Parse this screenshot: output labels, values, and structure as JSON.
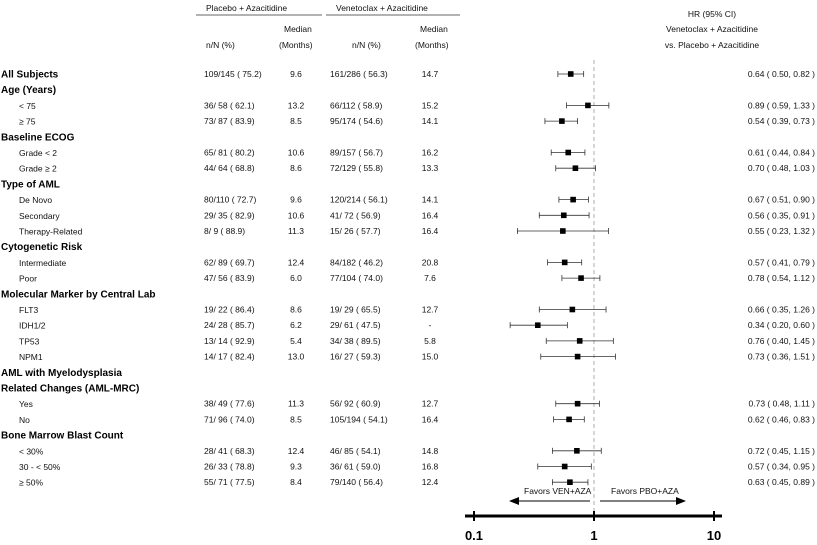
{
  "headers": {
    "placebo_group": "Placebo + Azacitidine",
    "ven_group": "Venetoclax + Azacitidine",
    "nN": "n/N (%)",
    "median1": "Median",
    "median2": "(Months)",
    "hr_line1": "HR (95% CI)",
    "hr_line2": "Venetoclax + Azacitidine",
    "hr_line3": "vs. Placebo + Azacitidine"
  },
  "chart_data": {
    "type": "forest",
    "x_scale": "log",
    "xlim": [
      0.1,
      10
    ],
    "ticks": [
      "0.1",
      "1",
      "10"
    ],
    "tick_values": [
      0.1,
      1,
      10
    ],
    "reference_line": 1,
    "arrow_left_label": "Favors VEN+AZA",
    "arrow_right_label": "Favors PBO+AZA",
    "rows": [
      {
        "label": "All Subjects",
        "kind": "category",
        "pbo_nN": "109/145 ( 75.2)",
        "pbo_median": "9.6",
        "ven_nN": "161/286 ( 56.3)",
        "ven_median": "14.7",
        "hr": 0.64,
        "lo": 0.5,
        "hi": 0.82,
        "hr_text": "0.64 ( 0.50,  0.82 )"
      },
      {
        "label": "Age (Years)",
        "kind": "category"
      },
      {
        "label": "< 75",
        "kind": "sub",
        "pbo_nN": "36/ 58 ( 62.1)",
        "pbo_median": "13.2",
        "ven_nN": "66/112 ( 58.9)",
        "ven_median": "15.2",
        "hr": 0.89,
        "lo": 0.59,
        "hi": 1.33,
        "hr_text": "0.89 ( 0.59,  1.33 )"
      },
      {
        "label": "≥ 75",
        "kind": "sub",
        "pbo_nN": "73/ 87 ( 83.9)",
        "pbo_median": "8.5",
        "ven_nN": "95/174 ( 54.6)",
        "ven_median": "14.1",
        "hr": 0.54,
        "lo": 0.39,
        "hi": 0.73,
        "hr_text": "0.54 ( 0.39,  0.73 )"
      },
      {
        "label": "Baseline ECOG",
        "kind": "category"
      },
      {
        "label": "Grade < 2",
        "kind": "sub",
        "pbo_nN": "65/ 81 ( 80.2)",
        "pbo_median": "10.6",
        "ven_nN": "89/157 ( 56.7)",
        "ven_median": "16.2",
        "hr": 0.61,
        "lo": 0.44,
        "hi": 0.84,
        "hr_text": "0.61 ( 0.44,  0.84 )"
      },
      {
        "label": "Grade ≥ 2",
        "kind": "sub",
        "pbo_nN": "44/ 64 ( 68.8)",
        "pbo_median": "8.6",
        "ven_nN": "72/129 ( 55.8)",
        "ven_median": "13.3",
        "hr": 0.7,
        "lo": 0.48,
        "hi": 1.03,
        "hr_text": "0.70 ( 0.48,  1.03 )"
      },
      {
        "label": "Type of AML",
        "kind": "category"
      },
      {
        "label": "De Novo",
        "kind": "sub",
        "pbo_nN": "80/110 ( 72.7)",
        "pbo_median": "9.6",
        "ven_nN": "120/214 ( 56.1)",
        "ven_median": "14.1",
        "hr": 0.67,
        "lo": 0.51,
        "hi": 0.9,
        "hr_text": "0.67 ( 0.51,  0.90 )"
      },
      {
        "label": "Secondary",
        "kind": "sub",
        "pbo_nN": "29/ 35 ( 82.9)",
        "pbo_median": "10.6",
        "ven_nN": "41/ 72 ( 56.9)",
        "ven_median": "16.4",
        "hr": 0.56,
        "lo": 0.35,
        "hi": 0.91,
        "hr_text": "0.56 ( 0.35,  0.91 )"
      },
      {
        "label": "Therapy-Related",
        "kind": "sub",
        "pbo_nN": "8/  9 ( 88.9)",
        "pbo_median": "11.3",
        "ven_nN": "15/ 26 ( 57.7)",
        "ven_median": "16.4",
        "hr": 0.55,
        "lo": 0.23,
        "hi": 1.32,
        "hr_text": "0.55 ( 0.23,  1.32 )"
      },
      {
        "label": "Cytogenetic Risk",
        "kind": "category"
      },
      {
        "label": "Intermediate",
        "kind": "sub",
        "pbo_nN": "62/ 89 ( 69.7)",
        "pbo_median": "12.4",
        "ven_nN": "84/182 ( 46.2)",
        "ven_median": "20.8",
        "hr": 0.57,
        "lo": 0.41,
        "hi": 0.79,
        "hr_text": "0.57 ( 0.41,  0.79 )"
      },
      {
        "label": "Poor",
        "kind": "sub",
        "pbo_nN": "47/ 56 ( 83.9)",
        "pbo_median": "6.0",
        "ven_nN": "77/104 ( 74.0)",
        "ven_median": "7.6",
        "hr": 0.78,
        "lo": 0.54,
        "hi": 1.12,
        "hr_text": "0.78 ( 0.54,  1.12 )"
      },
      {
        "label": "Molecular Marker by Central Lab",
        "kind": "category"
      },
      {
        "label": "FLT3",
        "kind": "sub",
        "pbo_nN": "19/ 22 ( 86.4)",
        "pbo_median": "8.6",
        "ven_nN": "19/ 29 ( 65.5)",
        "ven_median": "12.7",
        "hr": 0.66,
        "lo": 0.35,
        "hi": 1.26,
        "hr_text": "0.66 ( 0.35,  1.26 )"
      },
      {
        "label": "IDH1/2",
        "kind": "sub",
        "pbo_nN": "24/ 28 ( 85.7)",
        "pbo_median": "6.2",
        "ven_nN": "29/ 61 ( 47.5)",
        "ven_median": "-",
        "hr": 0.34,
        "lo": 0.2,
        "hi": 0.6,
        "hr_text": "0.34 ( 0.20,  0.60 )"
      },
      {
        "label": "TP53",
        "kind": "sub",
        "pbo_nN": "13/ 14 ( 92.9)",
        "pbo_median": "5.4",
        "ven_nN": "34/ 38 ( 89.5)",
        "ven_median": "5.8",
        "hr": 0.76,
        "lo": 0.4,
        "hi": 1.45,
        "hr_text": "0.76 ( 0.40,  1.45 )"
      },
      {
        "label": "NPM1",
        "kind": "sub",
        "pbo_nN": "14/ 17 ( 82.4)",
        "pbo_median": "13.0",
        "ven_nN": "16/ 27 ( 59.3)",
        "ven_median": "15.0",
        "hr": 0.73,
        "lo": 0.36,
        "hi": 1.51,
        "hr_text": "0.73 ( 0.36,  1.51 )"
      },
      {
        "label": "AML with Myelodysplasia",
        "kind": "category"
      },
      {
        "label": "Related Changes (AML-MRC)",
        "kind": "category"
      },
      {
        "label": "Yes",
        "kind": "sub",
        "pbo_nN": "38/ 49 ( 77.6)",
        "pbo_median": "11.3",
        "ven_nN": "56/ 92 ( 60.9)",
        "ven_median": "12.7",
        "hr": 0.73,
        "lo": 0.48,
        "hi": 1.11,
        "hr_text": "0.73 ( 0.48,  1.11 )"
      },
      {
        "label": "No",
        "kind": "sub",
        "pbo_nN": "71/ 96 ( 74.0)",
        "pbo_median": "8.5",
        "ven_nN": "105/194 ( 54.1)",
        "ven_median": "16.4",
        "hr": 0.62,
        "lo": 0.46,
        "hi": 0.83,
        "hr_text": "0.62 ( 0.46,  0.83 )"
      },
      {
        "label": "Bone Marrow Blast Count",
        "kind": "category"
      },
      {
        "label": "< 30%",
        "kind": "sub",
        "pbo_nN": "28/ 41 ( 68.3)",
        "pbo_median": "12.4",
        "ven_nN": "46/ 85 ( 54.1)",
        "ven_median": "14.8",
        "hr": 0.72,
        "lo": 0.45,
        "hi": 1.15,
        "hr_text": "0.72 ( 0.45,  1.15 )"
      },
      {
        "label": "30 - < 50%",
        "kind": "sub",
        "pbo_nN": "26/ 33 ( 78.8)",
        "pbo_median": "9.3",
        "ven_nN": "36/ 61 ( 59.0)",
        "ven_median": "16.8",
        "hr": 0.57,
        "lo": 0.34,
        "hi": 0.95,
        "hr_text": "0.57 ( 0.34,  0.95 )"
      },
      {
        "label": "≥ 50%",
        "kind": "sub",
        "pbo_nN": "55/ 71 ( 77.5)",
        "pbo_median": "8.4",
        "ven_nN": "79/140 ( 56.4)",
        "ven_median": "12.4",
        "hr": 0.63,
        "lo": 0.45,
        "hi": 0.89,
        "hr_text": "0.63 ( 0.45,  0.89 )"
      }
    ]
  }
}
